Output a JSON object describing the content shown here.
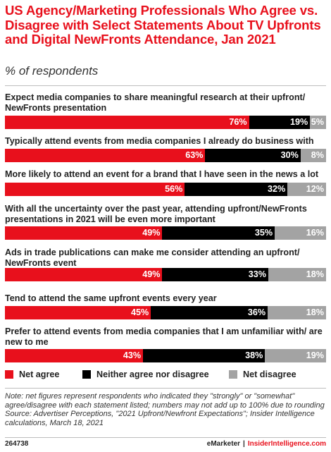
{
  "title": "US Agency/Marketing Professionals Who Agree vs. Disagree with Select Statements About TV Upfronts and Digital NewFronts Attendance, Jan 2021",
  "subtitle": "% of respondents",
  "colors": {
    "net_agree": "#e8101c",
    "neither": "#000000",
    "net_disagree": "#a3a3a3"
  },
  "legend": {
    "net_agree": "Net agree",
    "neither": "Neither agree nor disagree",
    "net_disagree": "Net disagree"
  },
  "chart_data": {
    "type": "bar",
    "orientation": "horizontal",
    "stacked": true,
    "categories": [
      "Expect media companies to share meaningful research at their upfront/ NewFronts presentation",
      "Typically attend events from media companies I already do business with",
      "More likely to attend an event for a brand that I have seen in the news a lot",
      "With all the uncertainty over the past year, attending upfront/NewFronts presentations in 2021 will be even more important",
      "Ads in trade publications can make me consider attending an upfront/ NewFronts event",
      "Tend to attend the same upfront events every year",
      "Prefer to attend events from media companies that I am unfamiliar with/ are new to me"
    ],
    "series": [
      {
        "name": "Net agree",
        "values": [
          76,
          63,
          56,
          49,
          49,
          45,
          43
        ],
        "labels": [
          "76%",
          "63%",
          "56%",
          "49%",
          "49%",
          "45%",
          "43%"
        ]
      },
      {
        "name": "Neither agree nor disagree",
        "values": [
          19,
          30,
          32,
          35,
          33,
          36,
          38
        ],
        "labels": [
          "19%",
          "30%",
          "32%",
          "35%",
          "33%",
          "36%",
          "38%"
        ]
      },
      {
        "name": "Net disagree",
        "values": [
          5,
          8,
          12,
          16,
          18,
          18,
          19
        ],
        "labels": [
          "5%",
          "8%",
          "12%",
          "16%",
          "18%",
          "18%",
          "19%"
        ]
      }
    ],
    "legend_position": "bottom"
  },
  "notes": "Note: net figures represent respondents who indicated they \"strongly\" or \"somewhat\" agree/disagree with each statement listed; numbers may not add up to 100% due to rounding",
  "source": "Source: Advertiser Perceptions, \"2021 Upfront/Newfront Expectations\"; Insider Intelligence calculations, March 18, 2021",
  "footer": {
    "chart_id": "264738",
    "brand": "eMarketer",
    "separator": "|",
    "site": "InsiderIntelligence.com"
  }
}
